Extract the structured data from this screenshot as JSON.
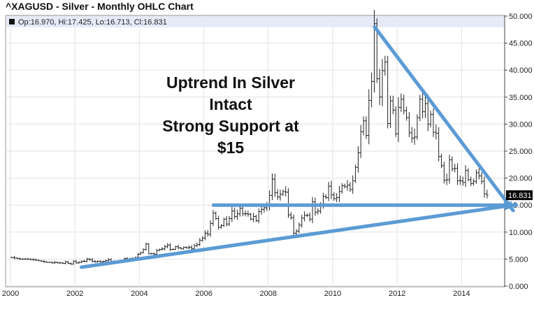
{
  "chart_data": {
    "type": "ohlc",
    "title": "^XAGUSD - Silver - Monthly OHLC Chart",
    "legend": "Op:16.970, Hi:17.425, Lo:16.713, Cl:16.831",
    "last_price_label": "16.831",
    "ylim": [
      0,
      50
    ],
    "y_ticks": [
      "0.000",
      "5.000",
      "10.000",
      "15.000",
      "20.000",
      "25.000",
      "30.000",
      "35.000",
      "40.000",
      "45.000",
      "50.000"
    ],
    "x_ticks": [
      "2000",
      "2002",
      "2004",
      "2006",
      "2008",
      "2010",
      "2012",
      "2014"
    ],
    "start_year": 2000,
    "monthly_close": [
      5.3,
      5.2,
      5.1,
      5.0,
      5.0,
      5.0,
      5.0,
      4.9,
      4.9,
      4.8,
      4.7,
      4.6,
      4.5,
      4.4,
      4.4,
      4.3,
      4.4,
      4.3,
      4.3,
      4.2,
      4.5,
      4.2,
      4.1,
      4.6,
      4.3,
      4.4,
      4.6,
      4.6,
      5.0,
      4.9,
      4.6,
      4.5,
      4.6,
      4.5,
      4.6,
      4.7,
      4.9,
      4.6,
      4.4,
      4.6,
      4.5,
      4.6,
      5.1,
      5.0,
      5.1,
      5.0,
      5.3,
      5.9,
      6.2,
      6.8,
      7.8,
      6.0,
      6.0,
      5.9,
      6.6,
      6.8,
      6.9,
      7.3,
      7.6,
      6.8,
      6.8,
      7.3,
      7.1,
      6.9,
      7.2,
      7.1,
      7.2,
      6.9,
      7.5,
      7.7,
      8.5,
      8.9,
      9.8,
      9.6,
      11.6,
      13.5,
      12.5,
      10.9,
      11.2,
      12.4,
      11.5,
      12.5,
      13.9,
      12.9,
      13.4,
      14.4,
      13.4,
      13.4,
      13.3,
      12.4,
      12.9,
      12.1,
      13.8,
      14.2,
      14.5,
      14.8,
      16.8,
      19.8,
      17.3,
      16.5,
      17.0,
      17.5,
      17.4,
      13.2,
      12.7,
      9.8,
      10.2,
      11.3,
      12.6,
      13.1,
      13.1,
      12.4,
      15.6,
      13.7,
      13.9,
      14.9,
      16.6,
      16.4,
      18.5,
      16.9,
      16.2,
      16.4,
      17.5,
      18.6,
      18.4,
      18.7,
      17.9,
      19.5,
      22.0,
      24.7,
      28.6,
      30.6,
      27.9,
      34.4,
      37.9,
      48.6,
      38.4,
      35.0,
      39.9,
      41.5,
      30.1,
      34.3,
      32.6,
      28.2,
      33.1,
      34.6,
      32.5,
      31.2,
      28.4,
      27.4,
      27.6,
      31.2,
      34.6,
      32.3,
      33.8,
      30.0,
      31.8,
      28.5,
      28.3,
      24.0,
      22.3,
      19.6,
      19.7,
      23.4,
      21.7,
      21.8,
      19.5,
      19.5,
      19.2,
      21.4,
      19.7,
      19.0,
      19.4,
      21.0,
      20.4,
      19.4,
      17.1,
      16.831
    ],
    "annotation": [
      "Uptrend In Silver",
      "Intact",
      "Strong Support at",
      "$15"
    ],
    "trendlines": [
      {
        "name": "resistance",
        "from": [
          2011.3,
          48
        ],
        "to": [
          2015.6,
          14
        ]
      },
      {
        "name": "horizontal-support",
        "from": [
          2006.3,
          15
        ],
        "to": [
          2015.7,
          15
        ]
      },
      {
        "name": "rising-support",
        "from": [
          2002.2,
          3.5
        ],
        "to": [
          2015.6,
          15
        ]
      }
    ],
    "colors": {
      "trendline": "#5b9bd5",
      "bar": "#222222",
      "legend_bg": "#e6eaf7"
    }
  }
}
